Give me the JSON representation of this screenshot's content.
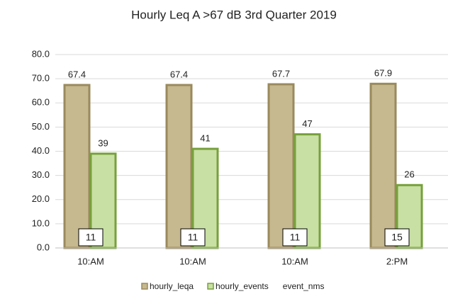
{
  "chart_data": {
    "type": "bar",
    "title": "Hourly  Leq A >67 dB 3rd Quarter  2019",
    "categories": [
      "10:AM",
      "10:AM",
      "10:AM",
      "2:PM"
    ],
    "series": [
      {
        "name": "hourly_leqa",
        "color": "#c6b88f",
        "values": [
          67.4,
          67.4,
          67.7,
          67.9
        ]
      },
      {
        "name": "hourly_events",
        "color": "#c8e0a4",
        "values": [
          39,
          41,
          47,
          26
        ]
      },
      {
        "name": "event_nms",
        "values": [
          11,
          11,
          11,
          15
        ]
      }
    ],
    "ylim": [
      0,
      80
    ],
    "yticks": [
      {
        "value": 0,
        "label": "0.0"
      },
      {
        "value": 10,
        "label": "10.0"
      },
      {
        "value": 20,
        "label": "20.0"
      },
      {
        "value": 30,
        "label": "30.0"
      },
      {
        "value": 40,
        "label": "40.0"
      },
      {
        "value": 50,
        "label": "50.0"
      },
      {
        "value": 60,
        "label": "60.0"
      },
      {
        "value": 70,
        "label": "70.0"
      },
      {
        "value": 80,
        "label": "80.0"
      }
    ],
    "grid": true,
    "legend": "bottom"
  }
}
